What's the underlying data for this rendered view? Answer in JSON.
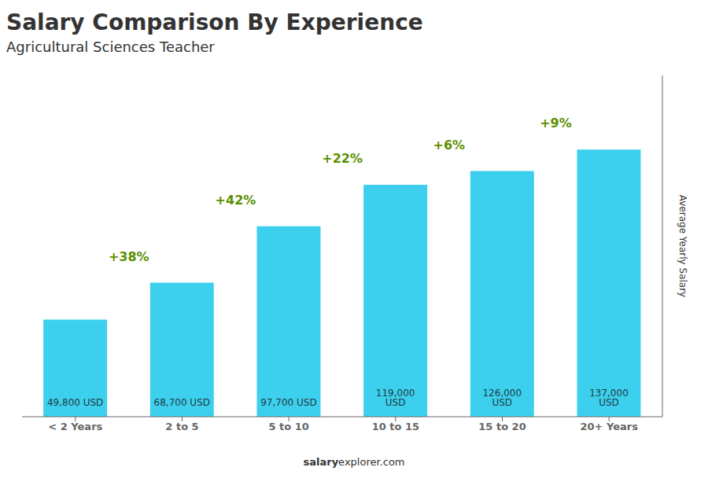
{
  "chart_data": {
    "type": "bar",
    "title": "Salary Comparison By Experience",
    "subtitle": "Agricultural Sciences Teacher",
    "categories": [
      "< 2 Years",
      "2 to 5",
      "5 to 10",
      "10 to 15",
      "15 to 20",
      "20+ Years"
    ],
    "values": [
      49800,
      68700,
      97700,
      119000,
      126000,
      137000
    ],
    "value_labels": [
      "49,800 USD",
      "68,700 USD",
      "97,700 USD",
      "119,000 USD",
      "126,000 USD",
      "137,000 USD"
    ],
    "data_labels": true,
    "color": "#3dd0ee",
    "ylabel": "Average Yearly Salary",
    "annotations": [
      "+38%",
      "+42%",
      "+22%",
      "+6%",
      "+9%"
    ],
    "footer_bold": "salary",
    "footer_rest": "explorer.com",
    "ylim": [
      0,
      175000
    ],
    "grid": false,
    "tick_labels": "x"
  }
}
